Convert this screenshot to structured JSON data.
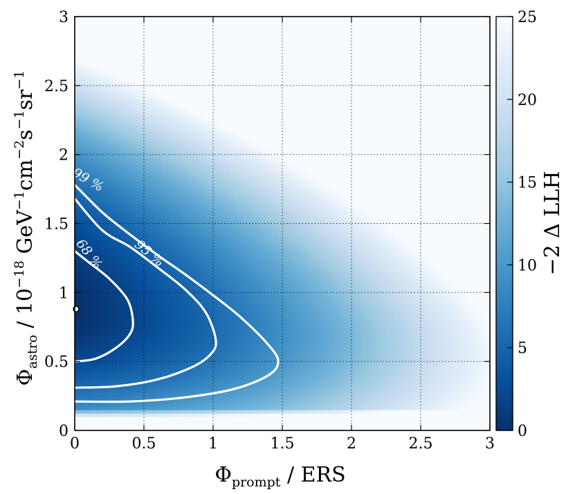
{
  "chart_data": {
    "type": "heatmap",
    "title": "",
    "xlabel": {
      "main": "Φ",
      "sub": "prompt",
      "rest": " / ERS"
    },
    "ylabel": {
      "main": "Φ",
      "sub": "astro",
      "rest": " / 10",
      "exp": "−18",
      "unit": " GeV",
      "e1": "−1",
      "cm": "cm",
      "e2": "−2",
      "s": "s",
      "e3": "−1",
      "sr": "sr",
      "e4": "−1"
    },
    "xlim": [
      0,
      3
    ],
    "ylim": [
      0,
      3
    ],
    "x_ticks": [
      "0",
      "0.5",
      "1",
      "1.5",
      "2",
      "2.5",
      "3"
    ],
    "y_ticks": [
      "0",
      "0.5",
      "1",
      "1.5",
      "2",
      "2.5",
      "3"
    ],
    "grid": true,
    "colorbar": {
      "label": "−2 Δ LLH",
      "range": [
        0,
        25
      ],
      "ticks": [
        "0",
        "5",
        "10",
        "15",
        "20",
        "25"
      ],
      "colormap": "Blues_reversed",
      "color_low": "#08306b",
      "color_high": "#f7fbff"
    },
    "best_fit": {
      "x": 0.0,
      "y": 0.88
    },
    "contours": [
      {
        "label": "68 %",
        "level": 2.3,
        "points": [
          [
            0.0,
            0.5
          ],
          [
            0.15,
            0.52
          ],
          [
            0.3,
            0.6
          ],
          [
            0.4,
            0.7
          ],
          [
            0.42,
            0.8
          ],
          [
            0.38,
            0.95
          ],
          [
            0.25,
            1.1
          ],
          [
            0.1,
            1.22
          ],
          [
            0.0,
            1.3
          ]
        ]
      },
      {
        "label": "95 %",
        "level": 6.18,
        "points": [
          [
            0.0,
            0.31
          ],
          [
            0.3,
            0.32
          ],
          [
            0.6,
            0.37
          ],
          [
            0.85,
            0.46
          ],
          [
            0.98,
            0.55
          ],
          [
            1.02,
            0.65
          ],
          [
            0.95,
            0.85
          ],
          [
            0.8,
            1.02
          ],
          [
            0.6,
            1.18
          ],
          [
            0.4,
            1.33
          ],
          [
            0.2,
            1.45
          ],
          [
            0.0,
            1.68
          ]
        ]
      },
      {
        "label": "99 %",
        "level": 9.21,
        "points": [
          [
            0.0,
            0.21
          ],
          [
            0.4,
            0.21
          ],
          [
            0.8,
            0.24
          ],
          [
            1.15,
            0.3
          ],
          [
            1.4,
            0.4
          ],
          [
            1.47,
            0.5
          ],
          [
            1.4,
            0.62
          ],
          [
            1.2,
            0.82
          ],
          [
            1.0,
            0.98
          ],
          [
            0.8,
            1.13
          ],
          [
            0.6,
            1.27
          ],
          [
            0.4,
            1.42
          ],
          [
            0.2,
            1.58
          ],
          [
            0.0,
            1.78
          ]
        ]
      }
    ]
  }
}
